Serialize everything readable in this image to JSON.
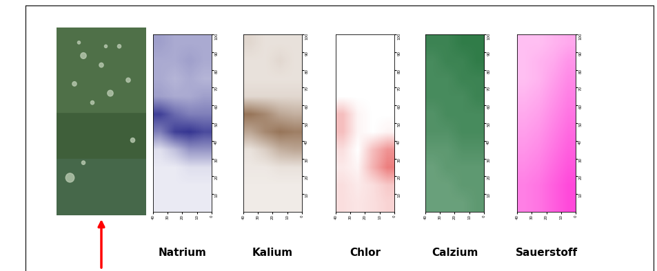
{
  "chart_data": [
    {
      "type": "heatmap",
      "title": "Natrium",
      "color": "#2b2b8c",
      "xlim": [
        40,
        0
      ],
      "xticks": [
        40,
        30,
        20,
        10,
        0
      ],
      "ylim": [
        0,
        100
      ],
      "yticks": [
        10,
        20,
        30,
        40,
        50,
        60,
        70,
        80,
        90,
        100
      ],
      "color_range": [
        0,
        1
      ],
      "cells": [
        [
          0.45,
          0.4,
          0.4,
          0.4
        ],
        [
          0.4,
          0.4,
          0.45,
          0.4
        ],
        [
          0.4,
          0.35,
          0.4,
          0.35
        ],
        [
          0.45,
          0.4,
          0.4,
          0.45
        ],
        [
          0.9,
          0.7,
          0.6,
          0.6
        ],
        [
          0.6,
          0.9,
          0.95,
          0.85
        ],
        [
          0.15,
          0.3,
          0.5,
          0.5
        ],
        [
          0.1,
          0.1,
          0.15,
          0.15
        ],
        [
          0.1,
          0.1,
          0.1,
          0.1
        ],
        [
          0.1,
          0.1,
          0.1,
          0.1
        ]
      ]
    },
    {
      "type": "heatmap",
      "title": "Kalium",
      "color": "#6b3a12",
      "xlim": [
        40,
        0
      ],
      "xticks": [
        40,
        30,
        20,
        10,
        0
      ],
      "ylim": [
        0,
        100
      ],
      "yticks": [
        10,
        20,
        30,
        40,
        50,
        60,
        70,
        80,
        90,
        100
      ],
      "color_range": [
        0,
        1
      ],
      "cells": [
        [
          0.2,
          0.15,
          0.15,
          0.15
        ],
        [
          0.15,
          0.15,
          0.2,
          0.15
        ],
        [
          0.15,
          0.15,
          0.15,
          0.15
        ],
        [
          0.2,
          0.2,
          0.2,
          0.2
        ],
        [
          0.7,
          0.6,
          0.45,
          0.4
        ],
        [
          0.45,
          0.6,
          0.7,
          0.65
        ],
        [
          0.15,
          0.25,
          0.4,
          0.45
        ],
        [
          0.12,
          0.12,
          0.15,
          0.15
        ],
        [
          0.1,
          0.1,
          0.1,
          0.1
        ],
        [
          0.1,
          0.1,
          0.1,
          0.1
        ]
      ]
    },
    {
      "type": "heatmap",
      "title": "Chlor",
      "color": "#e02828",
      "xlim": [
        40,
        0
      ],
      "xticks": [
        40,
        30,
        20,
        10,
        0
      ],
      "ylim": [
        0,
        100
      ],
      "yticks": [
        10,
        20,
        30,
        40,
        50,
        60,
        70,
        80,
        90,
        100
      ],
      "color_range": [
        0,
        1
      ],
      "cells": [
        [
          0.0,
          0.0,
          0.0,
          0.0
        ],
        [
          0.0,
          0.0,
          0.0,
          0.0
        ],
        [
          0.0,
          0.0,
          0.0,
          0.0
        ],
        [
          0.0,
          0.0,
          0.0,
          0.0
        ],
        [
          0.3,
          0.05,
          0.0,
          0.0
        ],
        [
          0.3,
          0.05,
          0.0,
          0.05
        ],
        [
          0.15,
          0.0,
          0.3,
          0.5
        ],
        [
          0.1,
          0.05,
          0.35,
          0.6
        ],
        [
          0.15,
          0.1,
          0.15,
          0.25
        ],
        [
          0.15,
          0.12,
          0.15,
          0.2
        ]
      ]
    },
    {
      "type": "heatmap",
      "title": "Calzium",
      "color": "#1a6e35",
      "xlim": [
        40,
        0
      ],
      "xticks": [
        40,
        30,
        20,
        10,
        0
      ],
      "ylim": [
        0,
        100
      ],
      "yticks": [
        10,
        20,
        30,
        40,
        50,
        60,
        70,
        80,
        90,
        100
      ],
      "color_range": [
        0,
        1
      ],
      "cells": [
        [
          0.85,
          0.85,
          0.9,
          0.9
        ],
        [
          0.8,
          0.85,
          0.85,
          0.9
        ],
        [
          0.8,
          0.8,
          0.85,
          0.85
        ],
        [
          0.8,
          0.8,
          0.8,
          0.85
        ],
        [
          0.75,
          0.8,
          0.8,
          0.8
        ],
        [
          0.75,
          0.75,
          0.8,
          0.8
        ],
        [
          0.7,
          0.7,
          0.75,
          0.75
        ],
        [
          0.65,
          0.7,
          0.7,
          0.7
        ],
        [
          0.65,
          0.65,
          0.7,
          0.7
        ],
        [
          0.65,
          0.65,
          0.65,
          0.7
        ]
      ]
    },
    {
      "type": "heatmap",
      "title": "Sauerstoff",
      "color": "#ff2ad4",
      "xlim": [
        40,
        0
      ],
      "xticks": [
        40,
        30,
        20,
        10,
        0
      ],
      "ylim": [
        0,
        100
      ],
      "yticks": [
        10,
        20,
        30,
        40,
        50,
        60,
        70,
        80,
        90,
        100
      ],
      "color_range": [
        0,
        1
      ],
      "cells": [
        [
          0.3,
          0.3,
          0.35,
          0.4
        ],
        [
          0.3,
          0.35,
          0.4,
          0.5
        ],
        [
          0.3,
          0.35,
          0.45,
          0.55
        ],
        [
          0.35,
          0.4,
          0.5,
          0.6
        ],
        [
          0.4,
          0.45,
          0.55,
          0.65
        ],
        [
          0.45,
          0.5,
          0.6,
          0.7
        ],
        [
          0.5,
          0.55,
          0.65,
          0.75
        ],
        [
          0.55,
          0.6,
          0.7,
          0.8
        ],
        [
          0.6,
          0.65,
          0.75,
          0.85
        ],
        [
          0.6,
          0.65,
          0.75,
          0.85
        ]
      ]
    }
  ]
}
